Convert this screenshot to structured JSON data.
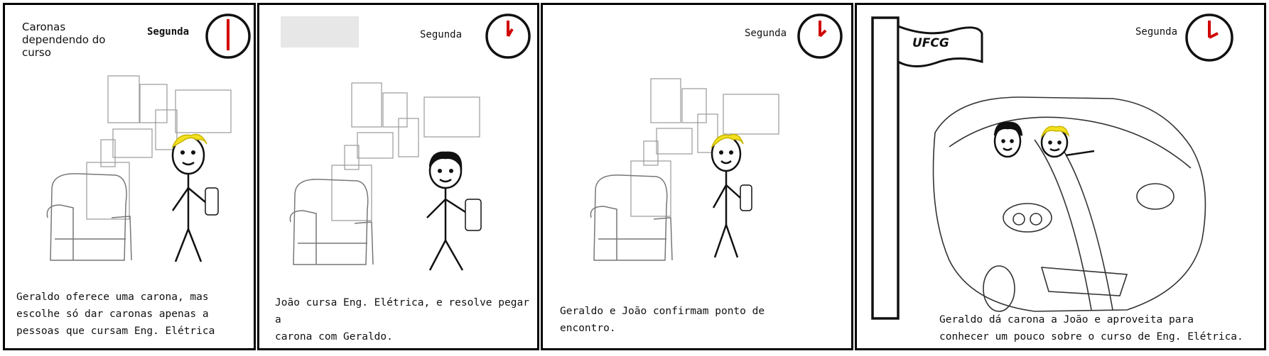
{
  "panels": [
    {
      "title": "Caronas dependendo do curso",
      "day": "Segunda",
      "caption_lines": [
        "Geraldo oferece uma carona, mas",
        "escolhe só dar caronas apenas a",
        "pessoas que cursam Eng. Elétrica"
      ]
    },
    {
      "day": "Segunda",
      "caption_lines": [
        "João cursa Eng. Elétrica, e resolve pegar a",
        "carona com Geraldo."
      ]
    },
    {
      "day": "Segunda",
      "caption_lines": [
        "Geraldo e João confirmam ponto de",
        "encontro."
      ]
    },
    {
      "flag_text": "UFCG",
      "day": "Segunda",
      "caption_lines": [
        "Geraldo dá carona a João e aproveita para",
        "conhecer um pouco sobre o curso de Eng. Elétrica."
      ]
    }
  ],
  "colors": {
    "hair": "#f4e11e",
    "clock_hand": "#d00000",
    "ink": "#111111"
  }
}
